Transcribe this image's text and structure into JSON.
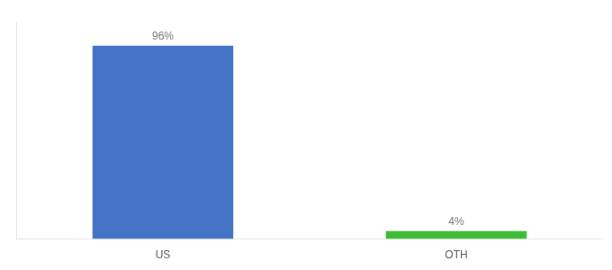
{
  "chart_data": {
    "type": "bar",
    "categories": [
      "US",
      "OTH"
    ],
    "values": [
      96,
      4
    ],
    "value_labels": [
      "96%",
      "4%"
    ],
    "colors": [
      "#4472c4",
      "#3dbb35"
    ],
    "ylim": [
      0,
      108
    ],
    "grid": false,
    "data_labels": true,
    "tick_labels": "x"
  }
}
